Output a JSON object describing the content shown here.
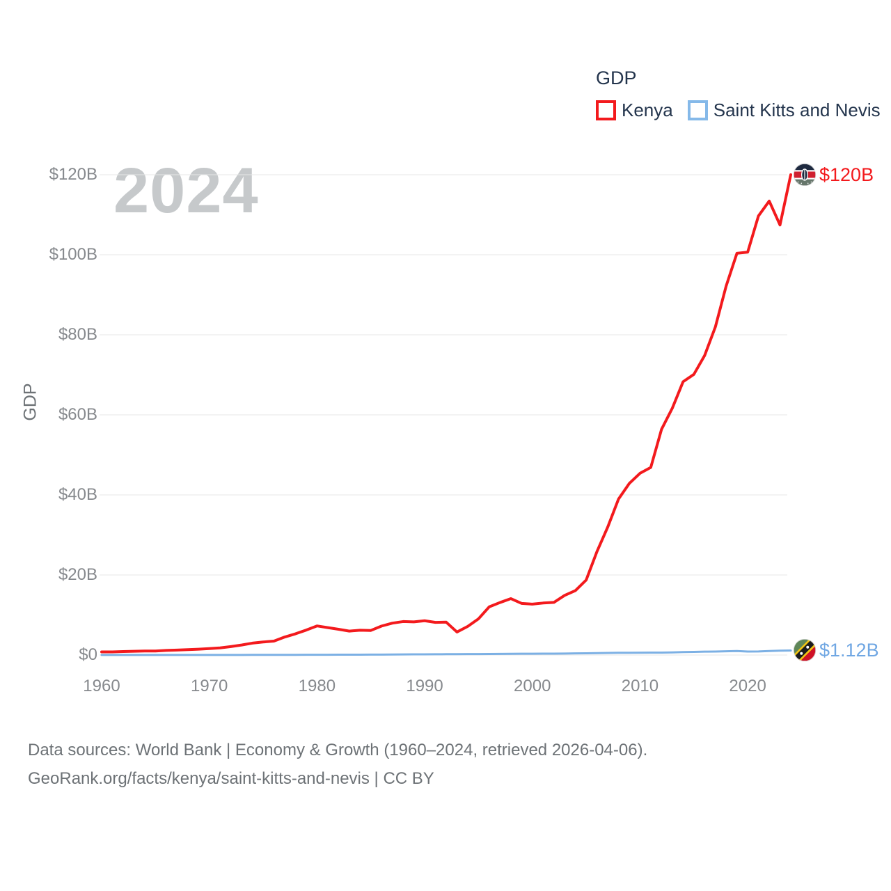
{
  "legend": {
    "title": "GDP",
    "items": [
      {
        "label": "Kenya",
        "color": "#f31a1d"
      },
      {
        "label": "Saint Kitts and Nevis",
        "color": "#7cb0e4"
      }
    ]
  },
  "watermark": "2024",
  "axes": {
    "y_title": "GDP",
    "y_ticks": [
      {
        "value": 0,
        "label": "$0"
      },
      {
        "value": 20,
        "label": "$20B"
      },
      {
        "value": 40,
        "label": "$40B"
      },
      {
        "value": 60,
        "label": "$60B"
      },
      {
        "value": 80,
        "label": "$80B"
      },
      {
        "value": 100,
        "label": "$100B"
      },
      {
        "value": 120,
        "label": "$120B"
      }
    ],
    "x_ticks": [
      {
        "value": 1960,
        "label": "1960"
      },
      {
        "value": 1970,
        "label": "1970"
      },
      {
        "value": 1980,
        "label": "1980"
      },
      {
        "value": 1990,
        "label": "1990"
      },
      {
        "value": 2000,
        "label": "2000"
      },
      {
        "value": 2010,
        "label": "2010"
      },
      {
        "value": 2020,
        "label": "2020"
      }
    ]
  },
  "end_labels": [
    {
      "series": "Kenya",
      "label": "$120B",
      "flag": "kenya-flag-icon"
    },
    {
      "series": "Saint Kitts and Nevis",
      "label": "$1.12B",
      "flag": "saint-kitts-and-nevis-flag-icon"
    }
  ],
  "footer": {
    "line1": "Data sources: World Bank | Economy & Growth (1960–2024, retrieved 2026-04-06).",
    "line2": "GeoRank.org/facts/kenya/saint-kitts-and-nevis | CC BY"
  },
  "chart_data": {
    "type": "line",
    "title": "GDP",
    "xlabel": "",
    "ylabel": "GDP",
    "unit": "USD billions",
    "xlim": [
      1960,
      2024
    ],
    "ylim": [
      0,
      120
    ],
    "grid": true,
    "legend_position": "top-right",
    "x": [
      1960,
      1961,
      1962,
      1963,
      1964,
      1965,
      1966,
      1967,
      1968,
      1969,
      1970,
      1971,
      1972,
      1973,
      1974,
      1975,
      1976,
      1977,
      1978,
      1979,
      1980,
      1981,
      1982,
      1983,
      1984,
      1985,
      1986,
      1987,
      1988,
      1989,
      1990,
      1991,
      1992,
      1993,
      1994,
      1995,
      1996,
      1997,
      1998,
      1999,
      2000,
      2001,
      2002,
      2003,
      2004,
      2005,
      2006,
      2007,
      2008,
      2009,
      2010,
      2011,
      2012,
      2013,
      2014,
      2015,
      2016,
      2017,
      2018,
      2019,
      2020,
      2021,
      2022,
      2023,
      2024
    ],
    "series": [
      {
        "name": "Kenya",
        "color": "#f31a1d",
        "end_label": "$120B",
        "values": [
          0.79,
          0.79,
          0.87,
          0.93,
          1.0,
          1.0,
          1.16,
          1.23,
          1.35,
          1.46,
          1.6,
          1.78,
          2.11,
          2.5,
          2.97,
          3.26,
          3.47,
          4.49,
          5.3,
          6.23,
          7.27,
          6.85,
          6.43,
          5.98,
          6.19,
          6.14,
          7.24,
          7.97,
          8.36,
          8.28,
          8.57,
          8.15,
          8.21,
          5.75,
          7.15,
          9.05,
          12.05,
          13.12,
          14.09,
          12.9,
          12.71,
          12.99,
          13.15,
          14.9,
          16.1,
          18.74,
          25.83,
          31.96,
          38.95,
          42.85,
          45.41,
          46.87,
          56.4,
          61.67,
          68.28,
          70.12,
          74.82,
          81.99,
          92.2,
          100.38,
          100.66,
          109.7,
          113.42,
          107.44,
          120.0
        ]
      },
      {
        "name": "Saint Kitts and Nevis",
        "color": "#7cb0e4",
        "end_label": "$1.12B",
        "values": [
          0.012,
          0.013,
          0.013,
          0.014,
          0.015,
          0.015,
          0.016,
          0.016,
          0.017,
          0.019,
          0.022,
          0.024,
          0.026,
          0.029,
          0.036,
          0.04,
          0.04,
          0.045,
          0.054,
          0.06,
          0.068,
          0.075,
          0.081,
          0.085,
          0.096,
          0.105,
          0.119,
          0.134,
          0.153,
          0.168,
          0.182,
          0.192,
          0.21,
          0.224,
          0.237,
          0.25,
          0.268,
          0.291,
          0.311,
          0.329,
          0.335,
          0.345,
          0.358,
          0.37,
          0.406,
          0.445,
          0.486,
          0.516,
          0.557,
          0.566,
          0.589,
          0.601,
          0.619,
          0.66,
          0.749,
          0.788,
          0.849,
          0.873,
          0.94,
          0.993,
          0.871,
          0.899,
          1.001,
          1.077,
          1.12
        ]
      }
    ]
  }
}
